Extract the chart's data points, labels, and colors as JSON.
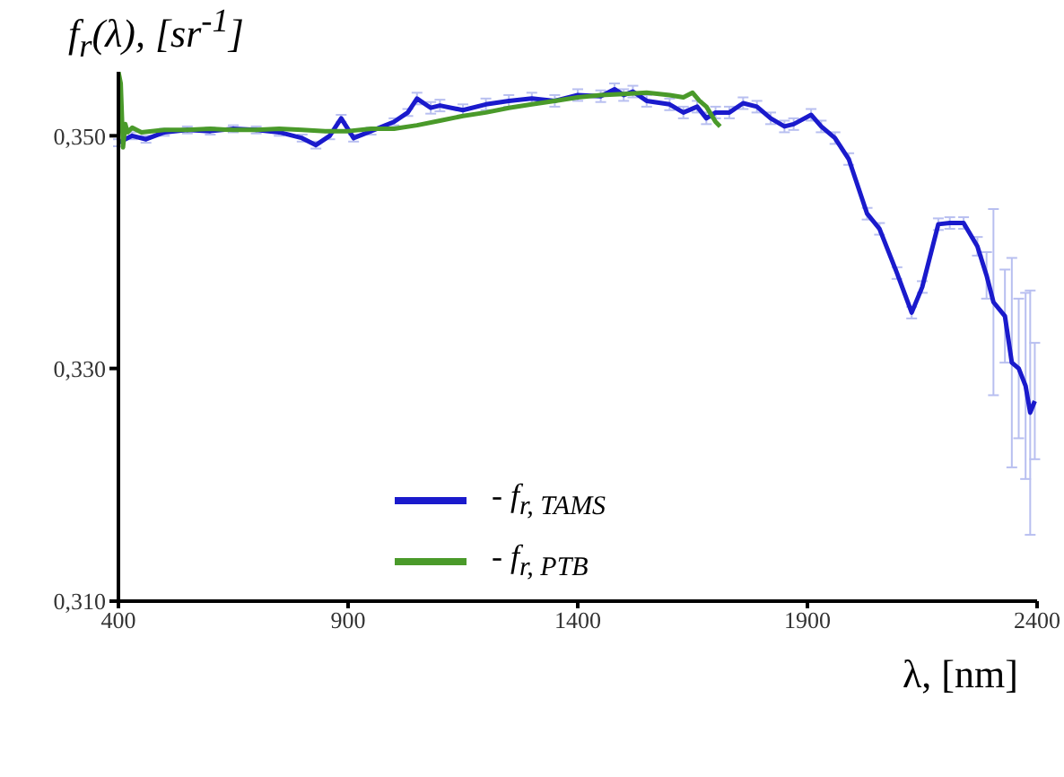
{
  "chart_data": {
    "type": "line",
    "ylabel": "f$_{r}$(λ), [sr$^{-1}$]",
    "xlabel": "λ, [nm]",
    "xlim": [
      400,
      2400
    ],
    "xticks": [
      400,
      900,
      1400,
      1900,
      2400
    ],
    "ylim": [
      0.31,
      0.3555
    ],
    "yticks": [
      {
        "value": 0.31,
        "label": "0,310"
      },
      {
        "value": 0.33,
        "label": "0,330"
      },
      {
        "value": 0.35,
        "label": "0,350"
      }
    ],
    "grid": false,
    "legend": "bottom left",
    "marker": "none",
    "line_style": "solid",
    "series": [
      {
        "name": "- f$_{r, TAMS}$",
        "color": "#1a1acc",
        "x": [
          400,
          430,
          460,
          500,
          550,
          600,
          650,
          700,
          750,
          800,
          830,
          860,
          885,
          912,
          950,
          1000,
          1030,
          1050,
          1080,
          1100,
          1150,
          1200,
          1250,
          1300,
          1350,
          1400,
          1450,
          1480,
          1500,
          1520,
          1550,
          1600,
          1630,
          1660,
          1680,
          1700,
          1730,
          1760,
          1790,
          1820,
          1850,
          1870,
          1908,
          1930,
          1960,
          1990,
          2030,
          2057,
          2095,
          2127,
          2150,
          2185,
          2210,
          2240,
          2270,
          2290,
          2305,
          2330,
          2345,
          2360,
          2375,
          2385,
          2395
        ],
        "values": [
          0.3494,
          0.35,
          0.3497,
          0.3503,
          0.3505,
          0.3504,
          0.3506,
          0.3505,
          0.3503,
          0.3498,
          0.3492,
          0.35,
          0.3515,
          0.3498,
          0.3504,
          0.3512,
          0.352,
          0.3532,
          0.3524,
          0.3526,
          0.3522,
          0.3527,
          0.353,
          0.3532,
          0.353,
          0.3535,
          0.3534,
          0.354,
          0.3535,
          0.3538,
          0.353,
          0.3527,
          0.352,
          0.3525,
          0.3515,
          0.352,
          0.352,
          0.3528,
          0.3525,
          0.3515,
          0.3508,
          0.351,
          0.3518,
          0.3508,
          0.3498,
          0.348,
          0.3433,
          0.342,
          0.3382,
          0.3348,
          0.337,
          0.3424,
          0.3425,
          0.3425,
          0.3405,
          0.338,
          0.3357,
          0.3345,
          0.3305,
          0.33,
          0.3285,
          0.3262,
          0.3272
        ],
        "errors": [
          0.0003,
          0.0003,
          0.0003,
          0.0003,
          0.0003,
          0.0003,
          0.0003,
          0.0003,
          0.0003,
          0.0003,
          0.0003,
          0.0003,
          0.0003,
          0.0003,
          0.0003,
          0.0003,
          0.0003,
          0.0005,
          0.0005,
          0.0005,
          0.0005,
          0.0005,
          0.0005,
          0.0005,
          0.0005,
          0.0005,
          0.0005,
          0.0005,
          0.0005,
          0.0005,
          0.0005,
          0.0005,
          0.0005,
          0.0005,
          0.0005,
          0.0005,
          0.0005,
          0.0005,
          0.0005,
          0.0005,
          0.0005,
          0.0005,
          0.0005,
          0.0005,
          0.0005,
          0.0005,
          0.0005,
          0.0005,
          0.0005,
          0.0005,
          0.0005,
          0.0005,
          0.0005,
          0.0005,
          0.0008,
          0.002,
          0.008,
          0.004,
          0.009,
          0.006,
          0.008,
          0.0105,
          0.005
        ]
      },
      {
        "name": "- f$_{r, PTB}$",
        "color": "#4a9a2a",
        "x": [
          400,
          405,
          410,
          415,
          420,
          430,
          450,
          500,
          550,
          600,
          650,
          700,
          750,
          800,
          850,
          900,
          950,
          1000,
          1050,
          1100,
          1150,
          1200,
          1250,
          1300,
          1350,
          1400,
          1450,
          1500,
          1550,
          1600,
          1630,
          1650,
          1665,
          1680,
          1700,
          1710
        ],
        "values": [
          0.3555,
          0.3545,
          0.349,
          0.351,
          0.3503,
          0.3507,
          0.3503,
          0.3505,
          0.3505,
          0.3506,
          0.3505,
          0.3505,
          0.3506,
          0.3505,
          0.3504,
          0.3504,
          0.3506,
          0.3506,
          0.3509,
          0.3513,
          0.3517,
          0.352,
          0.3524,
          0.3527,
          0.353,
          0.3533,
          0.3535,
          0.3536,
          0.3537,
          0.3535,
          0.3533,
          0.3537,
          0.353,
          0.3525,
          0.3512,
          0.3508
        ]
      }
    ]
  }
}
